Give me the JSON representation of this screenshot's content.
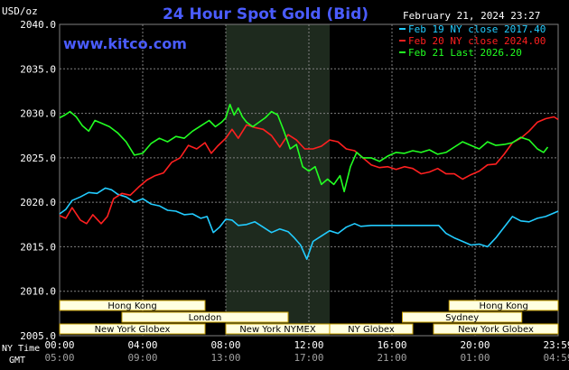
{
  "header": {
    "title": "24 Hour Spot Gold (Bid)",
    "units": "USD/oz",
    "timestamp": "February 21, 2024 23:27",
    "website": "www.kitco.com"
  },
  "colors": {
    "background": "#000000",
    "grid": "#808080",
    "ny_session_shade": "#1e2a1e",
    "title": "#4a5cff",
    "website": "#4a5cff",
    "text": "#ffffff",
    "session_fill": "#ffffe0",
    "session_border": "#c8a000",
    "session_text": "#000000",
    "series": [
      "#22ccff",
      "#ff2020",
      "#22ff22"
    ]
  },
  "sessions": {
    "rows": [
      [
        {
          "label": "Hong Kong",
          "start": 0.0,
          "end": 7.0
        },
        {
          "label": "Hong Kong",
          "start": 18.75,
          "end": 24.0
        }
      ],
      [
        {
          "label": "London",
          "start": 3.0,
          "end": 11.0
        },
        {
          "label": "Sydney",
          "start": 16.5,
          "end": 22.25
        }
      ],
      [
        {
          "label": "New York Globex",
          "start": 0.0,
          "end": 7.0
        },
        {
          "label": "New York NYMEX",
          "start": 8.0,
          "end": 13.0
        },
        {
          "label": "NY Globex",
          "start": 13.0,
          "end": 17.0
        },
        {
          "label": "New York Globex",
          "start": 18.0,
          "end": 24.0
        }
      ]
    ]
  },
  "time_axis": {
    "row1_label": "NY Time",
    "row2_label": "GMT",
    "ny_ticks": [
      "00:00",
      "04:00",
      "08:00",
      "12:00",
      "16:00",
      "20:00",
      "23:59"
    ],
    "gmt_ticks": [
      "05:00",
      "09:00",
      "13:00",
      "17:00",
      "21:00",
      "01:00",
      "04:59"
    ]
  },
  "chart_data": {
    "type": "line",
    "title": "24 Hour Spot Gold (Bid)",
    "ylabel": "USD/oz",
    "xlabel": "NY Time",
    "x_unit": "hours since 00:00 NY time",
    "xlim": [
      0,
      24
    ],
    "ylim": [
      2005,
      2040
    ],
    "y_ticks": [
      "2040.0",
      "2035.0",
      "2030.0",
      "2025.0",
      "2020.0",
      "2015.0",
      "2010.0",
      "2005.0"
    ],
    "grid": true,
    "legend_position": "top-right",
    "shaded_region": {
      "start": 8.0,
      "end": 13.0
    },
    "series": [
      {
        "name": "Feb 19 NY close 2017.40",
        "x": [
          0.0,
          0.3,
          0.6,
          1.0,
          1.4,
          1.8,
          2.2,
          2.5,
          2.8,
          3.2,
          3.6,
          4.0,
          4.4,
          4.8,
          5.2,
          5.6,
          6.0,
          6.4,
          6.8,
          7.1,
          7.4,
          7.7,
          8.0,
          8.3,
          8.6,
          9.0,
          9.4,
          9.8,
          10.2,
          10.6,
          11.0,
          11.3,
          11.6,
          11.9,
          12.2,
          12.6,
          13.0,
          13.4,
          13.8,
          14.2,
          14.5,
          15.0,
          16.0,
          17.0,
          18.0,
          18.25,
          18.6,
          19.0,
          19.4,
          19.8,
          20.2,
          20.6,
          21.0,
          21.4,
          21.8,
          22.2,
          22.6,
          23.0,
          23.4,
          23.8,
          24.0
        ],
        "y": [
          2018.7,
          2019.2,
          2020.2,
          2020.6,
          2021.1,
          2021.0,
          2021.6,
          2021.4,
          2020.9,
          2020.6,
          2020.0,
          2020.4,
          2019.8,
          2019.6,
          2019.1,
          2019.0,
          2018.6,
          2018.7,
          2018.2,
          2018.4,
          2016.6,
          2017.2,
          2018.1,
          2018.0,
          2017.4,
          2017.5,
          2017.8,
          2017.2,
          2016.6,
          2017.0,
          2016.7,
          2016.0,
          2015.2,
          2013.6,
          2015.6,
          2016.2,
          2016.8,
          2016.5,
          2017.2,
          2017.6,
          2017.3,
          2017.4,
          2017.4,
          2017.4,
          2017.4,
          2017.4,
          2016.5,
          2016.0,
          2015.6,
          2015.2,
          2015.3,
          2015.0,
          2016.0,
          2017.2,
          2018.4,
          2017.9,
          2017.8,
          2018.2,
          2018.4,
          2018.8,
          2019.0
        ]
      },
      {
        "name": "Feb 20 NY close 2024.00",
        "x": [
          0.0,
          0.3,
          0.6,
          1.0,
          1.3,
          1.6,
          2.0,
          2.3,
          2.6,
          3.0,
          3.4,
          3.8,
          4.2,
          4.6,
          5.0,
          5.4,
          5.8,
          6.2,
          6.6,
          7.0,
          7.3,
          7.6,
          8.0,
          8.3,
          8.6,
          9.0,
          9.4,
          9.8,
          10.2,
          10.6,
          11.0,
          11.4,
          11.8,
          12.2,
          12.6,
          13.0,
          13.4,
          13.8,
          14.2,
          14.6,
          15.0,
          15.4,
          15.8,
          16.2,
          16.6,
          17.0,
          17.4,
          17.8,
          18.2,
          18.6,
          19.0,
          19.4,
          19.8,
          20.2,
          20.6,
          21.0,
          21.4,
          21.8,
          22.2,
          22.6,
          23.0,
          23.4,
          23.8,
          24.0
        ],
        "y": [
          2018.5,
          2018.2,
          2019.4,
          2018.0,
          2017.6,
          2018.6,
          2017.6,
          2018.4,
          2020.4,
          2021.0,
          2020.8,
          2021.7,
          2022.5,
          2023.0,
          2023.3,
          2024.5,
          2025.0,
          2026.4,
          2026.0,
          2026.7,
          2025.5,
          2026.3,
          2027.2,
          2028.2,
          2027.2,
          2028.7,
          2028.4,
          2028.2,
          2027.5,
          2026.2,
          2027.6,
          2027.0,
          2026.0,
          2026.0,
          2026.3,
          2027.0,
          2026.8,
          2026.0,
          2025.8,
          2025.0,
          2024.2,
          2023.9,
          2024.0,
          2023.7,
          2024.0,
          2023.8,
          2023.2,
          2023.4,
          2023.8,
          2023.2,
          2023.2,
          2022.6,
          2023.1,
          2023.5,
          2024.2,
          2024.3,
          2025.4,
          2026.7,
          2027.2,
          2028.0,
          2029.0,
          2029.4,
          2029.6,
          2029.3
        ]
      },
      {
        "name": "Feb 21 Last 2026.20",
        "x": [
          0.0,
          0.25,
          0.5,
          0.8,
          1.1,
          1.4,
          1.7,
          2.0,
          2.4,
          2.8,
          3.2,
          3.6,
          4.0,
          4.4,
          4.8,
          5.2,
          5.6,
          6.0,
          6.4,
          6.8,
          7.2,
          7.5,
          7.8,
          8.0,
          8.2,
          8.4,
          8.6,
          8.8,
          9.0,
          9.3,
          9.6,
          9.9,
          10.2,
          10.5,
          10.8,
          11.1,
          11.4,
          11.7,
          12.0,
          12.3,
          12.6,
          12.9,
          13.2,
          13.5,
          13.7,
          14.0,
          14.3,
          14.6,
          15.0,
          15.4,
          15.8,
          16.2,
          16.6,
          17.0,
          17.4,
          17.8,
          18.2,
          18.6,
          19.0,
          19.4,
          19.8,
          20.2,
          20.6,
          21.0,
          21.4,
          21.8,
          22.2,
          22.6,
          23.0,
          23.3,
          23.5
        ],
        "y": [
          2029.5,
          2029.8,
          2030.2,
          2029.6,
          2028.6,
          2028.0,
          2029.2,
          2028.9,
          2028.5,
          2027.8,
          2026.8,
          2025.3,
          2025.5,
          2026.6,
          2027.2,
          2026.8,
          2027.4,
          2027.2,
          2028.0,
          2028.6,
          2029.2,
          2028.5,
          2029.0,
          2029.5,
          2031.0,
          2029.8,
          2030.6,
          2029.6,
          2029.0,
          2028.5,
          2029.0,
          2029.5,
          2030.2,
          2029.8,
          2028.0,
          2026.0,
          2026.5,
          2024.0,
          2023.5,
          2024.0,
          2022.0,
          2022.6,
          2022.0,
          2023.0,
          2021.2,
          2024.0,
          2025.6,
          2025.0,
          2025.0,
          2024.6,
          2025.2,
          2025.6,
          2025.5,
          2025.8,
          2025.6,
          2025.9,
          2025.4,
          2025.6,
          2026.2,
          2026.8,
          2026.4,
          2026.0,
          2026.8,
          2026.4,
          2026.5,
          2026.7,
          2027.3,
          2027.0,
          2026.0,
          2025.6,
          2026.2
        ]
      }
    ]
  }
}
